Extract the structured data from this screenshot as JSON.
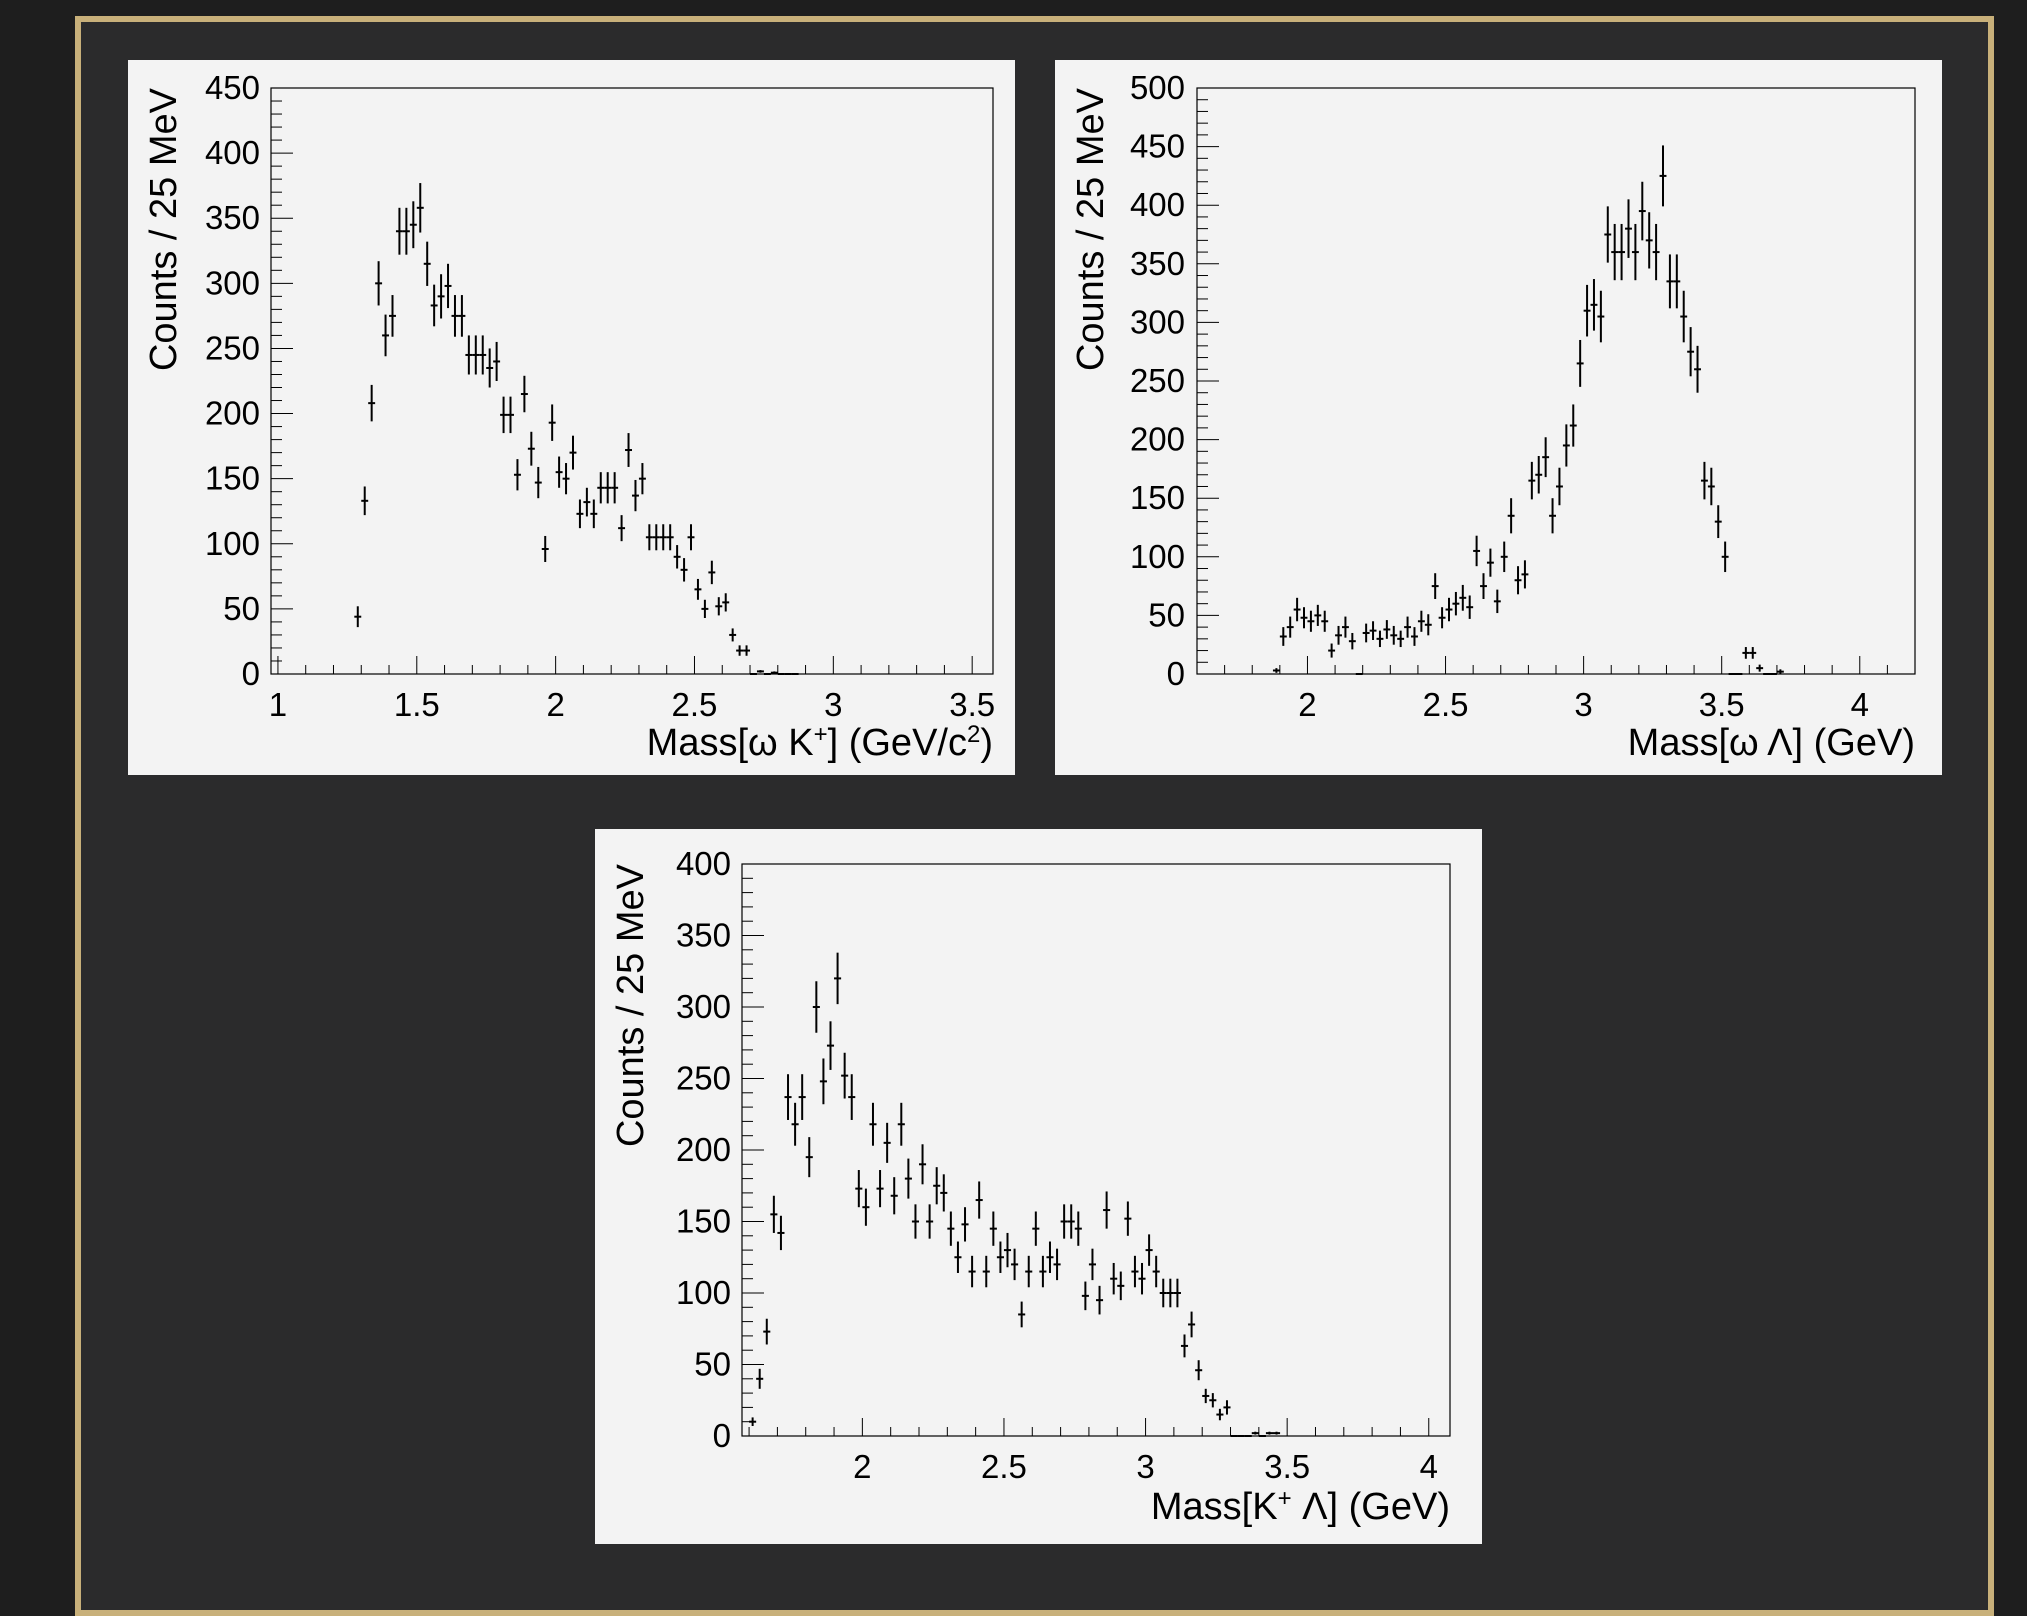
{
  "colors": {
    "background": "#1e1e1e",
    "frame_border": "#c8b07a",
    "frame_fill": "#2b2b2c",
    "panel": "#f3f3f3",
    "ink": "#000000"
  },
  "chart_data": [
    {
      "type": "scatter",
      "style": "histogram points with vertical error bars",
      "ylabel": "Counts / 25 MeV",
      "xlabel": {
        "text": "Mass[ω K",
        "sup1": "+",
        "mid": "] (GeV/c",
        "sup2": "2",
        "tail": ")"
      },
      "xlim": [
        0.975,
        3.575
      ],
      "ylim": [
        0,
        450
      ],
      "xticks": [
        1,
        1.5,
        2,
        2.5,
        3,
        3.5
      ],
      "xtick_labels": [
        "1",
        "1.5",
        "2",
        "2.5",
        "3",
        "3.5"
      ],
      "yticks": [
        0,
        50,
        100,
        150,
        200,
        250,
        300,
        350,
        400,
        450
      ],
      "ytick_labels": [
        "0",
        "50",
        "100",
        "150",
        "200",
        "250",
        "300",
        "350",
        "400",
        "450"
      ],
      "x": [
        1.2875,
        1.3125,
        1.3375,
        1.3625,
        1.3875,
        1.4125,
        1.4375,
        1.4625,
        1.4875,
        1.5125,
        1.5375,
        1.5625,
        1.5875,
        1.6125,
        1.6375,
        1.6625,
        1.6875,
        1.7125,
        1.7375,
        1.7625,
        1.7875,
        1.8125,
        1.8375,
        1.8625,
        1.8875,
        1.9125,
        1.9375,
        1.9625,
        1.9875,
        2.0125,
        2.0375,
        2.0625,
        2.0875,
        2.1125,
        2.1375,
        2.1625,
        2.1875,
        2.2125,
        2.2375,
        2.2625,
        2.2875,
        2.3125,
        2.3375,
        2.3625,
        2.3875,
        2.4125,
        2.4375,
        2.4625,
        2.4875,
        2.5125,
        2.5375,
        2.5625,
        2.5875,
        2.6125,
        2.6375,
        2.6625,
        2.6875,
        2.7125,
        2.7375,
        2.7625,
        2.7875,
        2.8125,
        2.8375,
        2.8625
      ],
      "y": [
        44,
        133,
        208,
        300,
        260,
        275,
        340,
        340,
        345,
        358,
        315,
        283,
        290,
        298,
        275,
        275,
        245,
        245,
        245,
        235,
        240,
        199,
        199,
        153,
        215,
        173,
        147,
        96,
        193,
        155,
        150,
        170,
        123,
        132,
        123,
        143,
        143,
        143,
        112,
        172,
        137,
        150,
        105,
        105,
        105,
        105,
        90,
        80,
        105,
        65,
        50,
        78,
        52,
        55,
        30,
        18,
        18,
        0,
        2,
        0,
        1,
        0,
        0,
        0
      ],
      "err": [
        8,
        11,
        14,
        17,
        16,
        16,
        18,
        18,
        18,
        19,
        17,
        16,
        17,
        17,
        16,
        16,
        15,
        15,
        15,
        15,
        15,
        14,
        14,
        12,
        14,
        13,
        12,
        10,
        14,
        12,
        12,
        13,
        11,
        11,
        11,
        12,
        12,
        12,
        10,
        13,
        12,
        12,
        10,
        10,
        10,
        10,
        9,
        9,
        10,
        8,
        7,
        9,
        7,
        7,
        5,
        4,
        4,
        0,
        1,
        0,
        1,
        0,
        0,
        0
      ]
    },
    {
      "type": "scatter",
      "style": "histogram points with vertical error bars",
      "ylabel": "Counts / 25 MeV",
      "xlabel": {
        "text": "Mass[ω Λ] (GeV)"
      },
      "xlim": [
        1.6,
        4.2
      ],
      "ylim": [
        0,
        500
      ],
      "xticks": [
        2,
        2.5,
        3,
        3.5,
        4
      ],
      "xtick_labels": [
        "2",
        "2.5",
        "3",
        "3.5",
        "4"
      ],
      "yticks": [
        0,
        50,
        100,
        150,
        200,
        250,
        300,
        350,
        400,
        450,
        500
      ],
      "ytick_labels": [
        "0",
        "50",
        "100",
        "150",
        "200",
        "250",
        "300",
        "350",
        "400",
        "450",
        "500"
      ],
      "x": [
        1.8875,
        1.9125,
        1.9375,
        1.9625,
        1.9875,
        2.0125,
        2.0375,
        2.0625,
        2.0875,
        2.1125,
        2.1375,
        2.1625,
        2.1875,
        2.2125,
        2.2375,
        2.2625,
        2.2875,
        2.3125,
        2.3375,
        2.3625,
        2.3875,
        2.4125,
        2.4375,
        2.4625,
        2.4875,
        2.5125,
        2.5375,
        2.5625,
        2.5875,
        2.6125,
        2.6375,
        2.6625,
        2.6875,
        2.7125,
        2.7375,
        2.7625,
        2.7875,
        2.8125,
        2.8375,
        2.8625,
        2.8875,
        2.9125,
        2.9375,
        2.9625,
        2.9875,
        3.0125,
        3.0375,
        3.0625,
        3.0875,
        3.1125,
        3.1375,
        3.1625,
        3.1875,
        3.2125,
        3.2375,
        3.2625,
        3.2875,
        3.3125,
        3.3375,
        3.3625,
        3.3875,
        3.4125,
        3.4375,
        3.4625,
        3.4875,
        3.5125,
        3.5375,
        3.5625,
        3.5875,
        3.6125,
        3.6375,
        3.6625,
        3.6875,
        3.7125
      ],
      "y": [
        3,
        32,
        40,
        55,
        48,
        45,
        50,
        45,
        20,
        33,
        40,
        28,
        0,
        35,
        37,
        30,
        38,
        33,
        30,
        40,
        32,
        45,
        42,
        75,
        48,
        55,
        60,
        65,
        57,
        105,
        75,
        95,
        62,
        100,
        135,
        80,
        85,
        165,
        170,
        185,
        135,
        160,
        195,
        212,
        265,
        310,
        315,
        305,
        375,
        360,
        360,
        380,
        360,
        395,
        370,
        360,
        425,
        335,
        335,
        305,
        275,
        260,
        165,
        160,
        130,
        100,
        0,
        0,
        18,
        18,
        5,
        0,
        0,
        2
      ],
      "err": [
        2,
        8,
        9,
        10,
        9,
        9,
        9,
        9,
        6,
        8,
        9,
        7,
        0,
        8,
        8,
        7,
        8,
        8,
        7,
        9,
        8,
        9,
        9,
        11,
        9,
        10,
        10,
        11,
        10,
        13,
        11,
        12,
        10,
        13,
        15,
        12,
        12,
        16,
        16,
        17,
        15,
        16,
        18,
        18,
        20,
        22,
        22,
        22,
        24,
        24,
        24,
        25,
        24,
        25,
        24,
        24,
        26,
        23,
        23,
        22,
        21,
        20,
        16,
        16,
        14,
        13,
        0,
        0,
        5,
        5,
        3,
        0,
        0,
        2
      ]
    },
    {
      "type": "scatter",
      "style": "histogram points with vertical error bars",
      "ylabel": "Counts / 25 MeV",
      "xlabel": {
        "text": "Mass[K",
        "sup1": "+",
        "mid": " Λ] (GeV)",
        "sup2": "",
        "tail": ""
      },
      "xlim": [
        1.575,
        4.075
      ],
      "ylim": [
        0,
        400
      ],
      "xticks": [
        2,
        2.5,
        3,
        3.5,
        4
      ],
      "xtick_labels": [
        "2",
        "2.5",
        "3",
        "3.5",
        "4"
      ],
      "yticks": [
        0,
        50,
        100,
        150,
        200,
        250,
        300,
        350,
        400
      ],
      "ytick_labels": [
        "0",
        "50",
        "100",
        "150",
        "200",
        "250",
        "300",
        "350",
        "400"
      ],
      "x": [
        1.6125,
        1.6375,
        1.6625,
        1.6875,
        1.7125,
        1.7375,
        1.7625,
        1.7875,
        1.8125,
        1.8375,
        1.8625,
        1.8875,
        1.9125,
        1.9375,
        1.9625,
        1.9875,
        2.0125,
        2.0375,
        2.0625,
        2.0875,
        2.1125,
        2.1375,
        2.1625,
        2.1875,
        2.2125,
        2.2375,
        2.2625,
        2.2875,
        2.3125,
        2.3375,
        2.3625,
        2.3875,
        2.4125,
        2.4375,
        2.4625,
        2.4875,
        2.5125,
        2.5375,
        2.5625,
        2.5875,
        2.6125,
        2.6375,
        2.6625,
        2.6875,
        2.7125,
        2.7375,
        2.7625,
        2.7875,
        2.8125,
        2.8375,
        2.8625,
        2.8875,
        2.9125,
        2.9375,
        2.9625,
        2.9875,
        3.0125,
        3.0375,
        3.0625,
        3.0875,
        3.1125,
        3.1375,
        3.1625,
        3.1875,
        3.2125,
        3.2375,
        3.2625,
        3.2875,
        3.3125,
        3.3375,
        3.3625,
        3.3875,
        3.4125,
        3.4375,
        3.4625
      ],
      "y": [
        10,
        40,
        73,
        155,
        142,
        237,
        218,
        237,
        195,
        300,
        248,
        273,
        320,
        252,
        237,
        173,
        160,
        218,
        173,
        205,
        168,
        218,
        180,
        150,
        190,
        150,
        175,
        170,
        145,
        125,
        148,
        115,
        165,
        115,
        145,
        125,
        130,
        120,
        85,
        115,
        145,
        115,
        125,
        120,
        150,
        150,
        145,
        98,
        120,
        95,
        158,
        110,
        105,
        152,
        115,
        110,
        130,
        115,
        100,
        100,
        100,
        63,
        78,
        46,
        28,
        25,
        15,
        20,
        0,
        0,
        0,
        2,
        0,
        2,
        2
      ],
      "err": [
        3,
        7,
        9,
        13,
        12,
        16,
        15,
        16,
        14,
        18,
        16,
        17,
        18,
        16,
        16,
        13,
        13,
        15,
        13,
        14,
        13,
        15,
        14,
        12,
        14,
        12,
        13,
        13,
        12,
        11,
        12,
        11,
        13,
        11,
        12,
        11,
        12,
        11,
        9,
        11,
        12,
        11,
        11,
        11,
        12,
        12,
        12,
        10,
        11,
        10,
        13,
        11,
        10,
        12,
        11,
        11,
        11,
        11,
        10,
        10,
        10,
        8,
        9,
        7,
        5,
        5,
        4,
        5,
        0,
        0,
        0,
        1,
        0,
        1,
        1
      ]
    }
  ]
}
